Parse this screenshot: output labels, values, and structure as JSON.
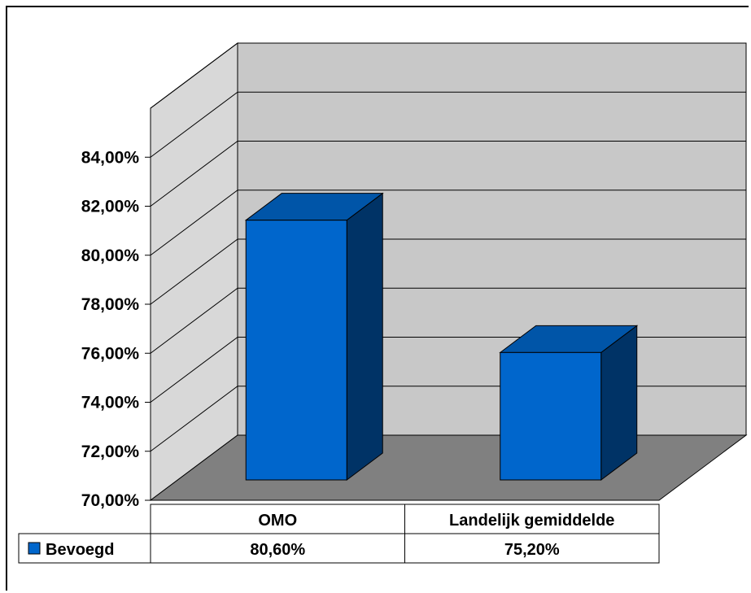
{
  "chart_data": {
    "type": "bar",
    "categories": [
      "OMO",
      "Landelijk gemiddelde"
    ],
    "series": [
      {
        "name": "Bevoegd",
        "values": [
          80.6,
          75.2
        ],
        "value_labels": [
          "80,60%",
          "75,20%"
        ]
      }
    ],
    "ylim": [
      70,
      86
    ],
    "ytick_values": [
      70,
      72,
      74,
      76,
      78,
      80,
      82,
      84
    ],
    "ytick_labels": [
      "70,00%",
      "72,00%",
      "74,00%",
      "76,00%",
      "78,00%",
      "80,00%",
      "82,00%",
      "84,00%"
    ],
    "grid": true,
    "legend_position": "data-table",
    "data_table": true,
    "style": "3d-column",
    "colors": {
      "bar_front": "#0066CC",
      "bar_top": "#0055A8",
      "bar_side": "#003366",
      "back_wall": "#C8C8C8",
      "side_wall": "#D8D8D8",
      "floor": "#808080"
    }
  }
}
